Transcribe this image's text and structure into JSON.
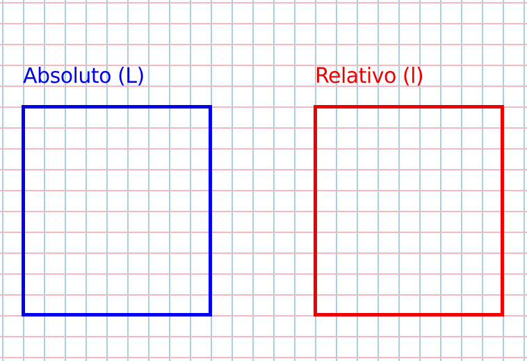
{
  "colors": {
    "background": "#ffffff",
    "grid_vertical": "#a8cfdc",
    "grid_horizontal": "#f6b7c0",
    "absolute": "#0000ee",
    "relative": "#ee0000"
  },
  "panels": {
    "absolute": {
      "label": "Absoluto (L)"
    },
    "relative": {
      "label": "Relativo (l)"
    }
  }
}
